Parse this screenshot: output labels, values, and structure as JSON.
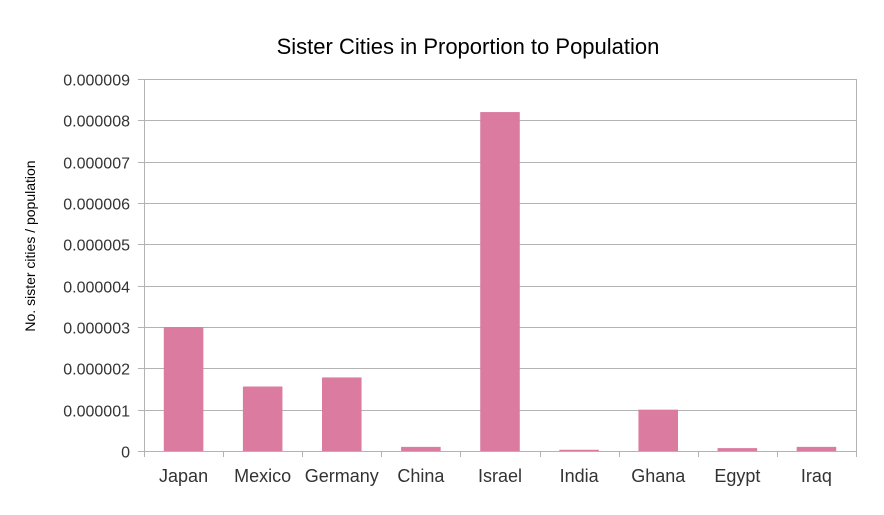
{
  "chart_data": {
    "type": "bar",
    "title": "Sister Cities in Proportion to Population",
    "xlabel": "",
    "ylabel": "No. sister cities / population",
    "ylim": [
      0,
      9e-06
    ],
    "yticks": [
      "0",
      "0.000001",
      "0.000002",
      "0.000003",
      "0.000004",
      "0.000005",
      "0.000006",
      "0.000007",
      "0.000008",
      "0.000009"
    ],
    "grid": true,
    "legend": "none",
    "categories": [
      "Japan",
      "Mexico",
      "Germany",
      "China",
      "Israel",
      "India",
      "Ghana",
      "Egypt",
      "Iraq"
    ],
    "values": [
      3e-06,
      1.56e-06,
      1.78e-06,
      1e-07,
      8.2e-06,
      3e-08,
      1e-06,
      7e-08,
      1e-07
    ],
    "bar_color": "#db7b9f"
  }
}
